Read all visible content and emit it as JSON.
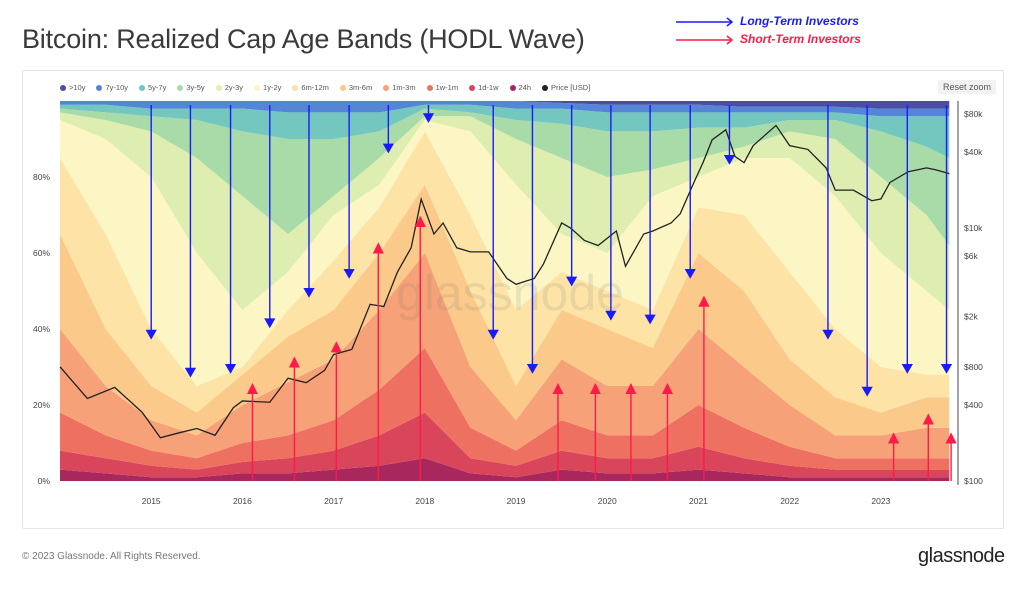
{
  "title": "Bitcoin: Realized Cap Age Bands (HODL Wave)",
  "annotations": {
    "long_term": {
      "label": "Long-Term Investors",
      "color": "#1a1aff"
    },
    "short_term": {
      "label": "Short-Term Investors",
      "color": "#ff1a4a"
    }
  },
  "reset_zoom": "Reset zoom",
  "footer": "© 2023 Glassnode. All Rights Reserved.",
  "logo": "glassnode",
  "watermark": "glassnode",
  "chart_data": {
    "type": "area",
    "stacked": true,
    "x": [
      2014.0,
      2014.5,
      2015.0,
      2015.5,
      2016.0,
      2016.5,
      2017.0,
      2017.5,
      2018.0,
      2018.5,
      2019.0,
      2019.5,
      2020.0,
      2020.5,
      2021.0,
      2021.5,
      2022.0,
      2022.5,
      2023.0,
      2023.5,
      2023.75
    ],
    "xlim": [
      2014.0,
      2023.78
    ],
    "x_ticks": [
      "2015",
      "2016",
      "2017",
      "2018",
      "2019",
      "2020",
      "2021",
      "2022",
      "2023"
    ],
    "ylim": [
      0,
      100
    ],
    "y_ticks": [
      "0%",
      "20%",
      "40%",
      "60%",
      "80%"
    ],
    "y2_scale": "log",
    "y2lim": [
      100,
      80000
    ],
    "y2_ticks": [
      [
        "$100",
        100
      ],
      [
        "$400",
        400
      ],
      [
        "$800",
        800
      ],
      [
        "$2k",
        2000
      ],
      [
        "$6k",
        6000
      ],
      [
        "$10k",
        10000
      ],
      [
        "$40k",
        40000
      ],
      [
        "$80k",
        80000
      ]
    ],
    "grid": false,
    "legend_placement": "top-left",
    "series": [
      {
        "name": "24h",
        "color": "#a8285d",
        "values": [
          3,
          2,
          1,
          1,
          2,
          2,
          3,
          4,
          6,
          2,
          1,
          3,
          2,
          2,
          3,
          2,
          1,
          1,
          1,
          1,
          1
        ]
      },
      {
        "name": "1d-1w",
        "color": "#d9455a",
        "values": [
          5,
          4,
          3,
          2,
          3,
          4,
          5,
          8,
          12,
          4,
          3,
          5,
          4,
          4,
          6,
          4,
          3,
          2,
          2,
          2,
          2
        ]
      },
      {
        "name": "1w-1m",
        "color": "#ee7060",
        "values": [
          10,
          6,
          4,
          3,
          5,
          6,
          8,
          12,
          17,
          8,
          4,
          8,
          6,
          6,
          11,
          8,
          5,
          3,
          3,
          3,
          3
        ]
      },
      {
        "name": "1m-3m",
        "color": "#f6a177",
        "values": [
          22,
          13,
          8,
          6,
          10,
          14,
          16,
          21,
          25,
          16,
          8,
          16,
          13,
          13,
          20,
          16,
          11,
          6,
          6,
          8,
          8
        ]
      },
      {
        "name": "3m-6m",
        "color": "#fbc98a",
        "values": [
          25,
          15,
          9,
          6,
          8,
          12,
          13,
          15,
          18,
          20,
          9,
          13,
          15,
          10,
          20,
          20,
          12,
          10,
          6,
          8,
          8
        ]
      },
      {
        "name": "6m-12m",
        "color": "#fde3a5",
        "values": [
          20,
          25,
          15,
          7,
          2,
          7,
          13,
          12,
          14,
          20,
          20,
          10,
          10,
          10,
          12,
          20,
          23,
          18,
          12,
          6,
          6
        ]
      },
      {
        "name": "1y-2y",
        "color": "#fbf6c4",
        "values": [
          10,
          25,
          40,
          35,
          15,
          10,
          12,
          6,
          3,
          22,
          33,
          10,
          10,
          30,
          8,
          15,
          30,
          35,
          30,
          22,
          17
        ]
      },
      {
        "name": "2y-3y",
        "color": "#ddeeb0",
        "values": [
          2,
          5,
          12,
          25,
          30,
          10,
          5,
          7,
          1,
          4,
          12,
          20,
          20,
          7,
          5,
          3,
          7,
          15,
          20,
          20,
          17
        ]
      },
      {
        "name": "3y-5y",
        "color": "#a9dba8",
        "values": [
          1,
          2,
          4,
          10,
          17,
          25,
          15,
          7,
          2,
          1,
          5,
          9,
          12,
          10,
          8,
          5,
          3,
          5,
          12,
          18,
          23
        ]
      },
      {
        "name": "5y-7y",
        "color": "#74c7bf",
        "values": [
          1,
          2,
          2,
          3,
          6,
          7,
          7,
          5,
          1,
          2,
          3,
          4,
          5,
          5,
          4,
          4,
          2,
          2,
          4,
          8,
          11
        ]
      },
      {
        "name": "7y-10y",
        "color": "#5585d6",
        "values": [
          1,
          1,
          2,
          2,
          2,
          3,
          3,
          3,
          1,
          1,
          2,
          1.5,
          2,
          2,
          2,
          1.5,
          1.5,
          1.5,
          2,
          2,
          2
        ]
      },
      {
        "name": ">10y",
        "color": "#4c4ca6",
        "values": [
          0,
          0,
          0,
          0,
          0,
          0,
          0,
          0,
          0,
          0,
          0,
          0.5,
          1,
          1,
          1,
          1.5,
          1.5,
          1.5,
          2,
          2,
          2
        ]
      }
    ],
    "price": {
      "name": "Price [USD]",
      "color": "#222222",
      "points": [
        [
          2014.0,
          800
        ],
        [
          2014.3,
          450
        ],
        [
          2014.6,
          550
        ],
        [
          2014.9,
          350
        ],
        [
          2015.1,
          220
        ],
        [
          2015.3,
          240
        ],
        [
          2015.5,
          260
        ],
        [
          2015.7,
          230
        ],
        [
          2015.9,
          380
        ],
        [
          2016.0,
          430
        ],
        [
          2016.3,
          420
        ],
        [
          2016.5,
          650
        ],
        [
          2016.7,
          600
        ],
        [
          2016.9,
          750
        ],
        [
          2017.0,
          1000
        ],
        [
          2017.2,
          1100
        ],
        [
          2017.4,
          2500
        ],
        [
          2017.55,
          2400
        ],
        [
          2017.7,
          4500
        ],
        [
          2017.85,
          7000
        ],
        [
          2017.96,
          17000
        ],
        [
          2018.1,
          9000
        ],
        [
          2018.2,
          11000
        ],
        [
          2018.35,
          7000
        ],
        [
          2018.5,
          6500
        ],
        [
          2018.7,
          6500
        ],
        [
          2018.9,
          4000
        ],
        [
          2019.0,
          3600
        ],
        [
          2019.2,
          4000
        ],
        [
          2019.3,
          5200
        ],
        [
          2019.5,
          11000
        ],
        [
          2019.6,
          10000
        ],
        [
          2019.75,
          8000
        ],
        [
          2019.9,
          7300
        ],
        [
          2020.1,
          9500
        ],
        [
          2020.2,
          5000
        ],
        [
          2020.4,
          9000
        ],
        [
          2020.5,
          9500
        ],
        [
          2020.7,
          11000
        ],
        [
          2020.8,
          13000
        ],
        [
          2020.95,
          23000
        ],
        [
          2021.05,
          33000
        ],
        [
          2021.15,
          50000
        ],
        [
          2021.3,
          60000
        ],
        [
          2021.4,
          37000
        ],
        [
          2021.5,
          33000
        ],
        [
          2021.6,
          45000
        ],
        [
          2021.85,
          65000
        ],
        [
          2022.0,
          45000
        ],
        [
          2022.2,
          42000
        ],
        [
          2022.4,
          30000
        ],
        [
          2022.5,
          20000
        ],
        [
          2022.7,
          20000
        ],
        [
          2022.9,
          16500
        ],
        [
          2023.0,
          17000
        ],
        [
          2023.1,
          23000
        ],
        [
          2023.3,
          28000
        ],
        [
          2023.5,
          30000
        ],
        [
          2023.6,
          29000
        ],
        [
          2023.75,
          27000
        ]
      ]
    },
    "long_term_arrows": [
      [
        2015.0,
        36
      ],
      [
        2015.43,
        26
      ],
      [
        2015.87,
        27
      ],
      [
        2016.3,
        39
      ],
      [
        2016.73,
        47
      ],
      [
        2017.17,
        52
      ],
      [
        2017.6,
        85
      ],
      [
        2018.04,
        93
      ],
      [
        2018.75,
        36
      ],
      [
        2019.18,
        27
      ],
      [
        2019.61,
        50
      ],
      [
        2020.04,
        41
      ],
      [
        2020.47,
        40
      ],
      [
        2020.91,
        52
      ],
      [
        2021.34,
        82
      ],
      [
        2022.42,
        36
      ],
      [
        2022.85,
        21
      ],
      [
        2023.29,
        27
      ],
      [
        2023.72,
        27
      ]
    ],
    "short_term_arrows": [
      [
        2016.11,
        27
      ],
      [
        2016.57,
        34
      ],
      [
        2017.03,
        38
      ],
      [
        2017.49,
        64
      ],
      [
        2017.95,
        71
      ],
      [
        2019.46,
        27
      ],
      [
        2019.87,
        27
      ],
      [
        2020.26,
        27
      ],
      [
        2020.66,
        27
      ],
      [
        2021.06,
        50
      ],
      [
        2023.14,
        14
      ],
      [
        2023.52,
        19
      ],
      [
        2023.77,
        14
      ]
    ]
  }
}
